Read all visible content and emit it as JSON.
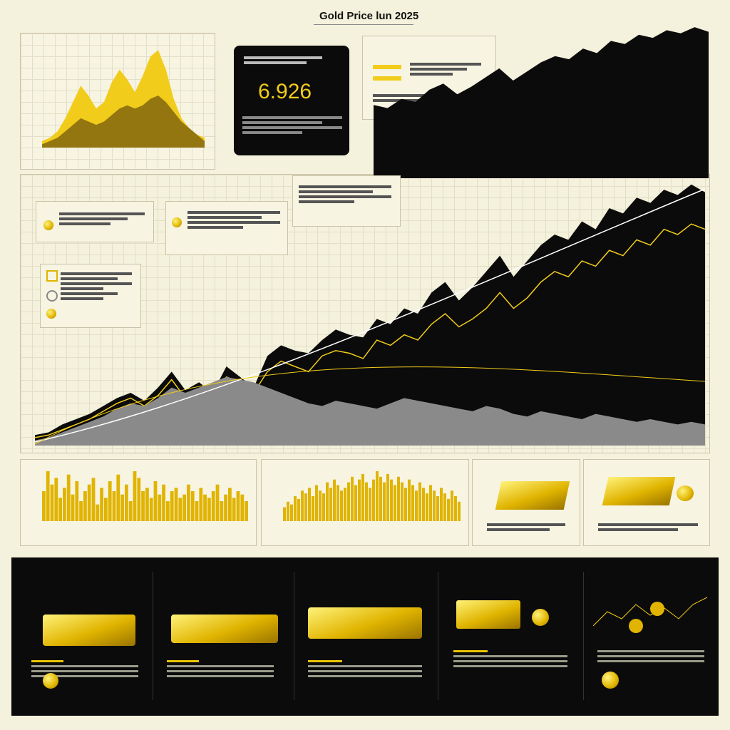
{
  "title": "Gold Price lun 2025",
  "price_card": {
    "value": "6.926"
  },
  "colors": {
    "gold": "#f2cc1a",
    "dark": "#0b0b0b",
    "paper": "#f4f1dc",
    "grey": "#8a8a8a"
  },
  "chart_data": [
    {
      "type": "area",
      "series": [
        {
          "values": [
            2,
            3,
            5,
            9,
            14,
            19,
            16,
            12,
            14,
            20,
            24,
            21,
            17,
            22,
            28,
            30,
            24,
            15,
            9,
            6,
            4,
            3
          ]
        },
        {
          "values": [
            1,
            2,
            3,
            5,
            7,
            9,
            8,
            7,
            8,
            10,
            12,
            13,
            12,
            13,
            15,
            16,
            14,
            11,
            8,
            6,
            4,
            2
          ]
        }
      ]
    },
    {
      "type": "area",
      "series": [
        {
          "values": [
            4,
            5,
            8,
            10,
            12,
            15,
            18,
            20,
            17,
            22,
            28,
            21,
            24,
            20,
            30,
            26,
            22,
            34,
            38,
            36,
            35,
            40,
            44,
            42,
            41,
            48,
            46,
            52,
            50,
            58,
            62,
            55,
            60,
            66,
            72,
            64,
            70,
            76,
            80,
            78,
            85,
            82,
            90,
            88,
            94,
            92,
            97,
            95,
            99,
            96
          ]
        },
        {
          "values": [
            3,
            4,
            6,
            8,
            10,
            13,
            16,
            18,
            15,
            19,
            25,
            18,
            20,
            18,
            26,
            24,
            20,
            28,
            32,
            30,
            28,
            34,
            36,
            35,
            33,
            40,
            38,
            42,
            40,
            46,
            50,
            45,
            48,
            52,
            58,
            52,
            56,
            62,
            66,
            64,
            70,
            68,
            74,
            72,
            78,
            76,
            82,
            80,
            84,
            82
          ]
        },
        {
          "values": [
            2,
            3,
            5,
            7,
            9,
            11,
            14,
            16,
            15,
            18,
            22,
            20,
            22,
            24,
            26,
            25,
            24,
            22,
            20,
            18,
            16,
            15,
            17,
            16,
            15,
            14,
            16,
            18,
            17,
            16,
            15,
            14,
            13,
            15,
            14,
            12,
            11,
            13,
            12,
            11,
            10,
            12,
            11,
            10,
            9,
            10,
            9,
            8,
            9,
            8
          ]
        }
      ]
    },
    {
      "type": "bar",
      "values": [
        18,
        30,
        22,
        26,
        14,
        20,
        28,
        16,
        24,
        12,
        18,
        22,
        26,
        10,
        20,
        14,
        24,
        18,
        28,
        16,
        22,
        12,
        30,
        26,
        18,
        20,
        14,
        24,
        16,
        22,
        12,
        18,
        20,
        14,
        16,
        22,
        18,
        12,
        20,
        16,
        14,
        18,
        22,
        12,
        16,
        20,
        14,
        18,
        16,
        12
      ]
    },
    {
      "type": "bar",
      "values": [
        10,
        14,
        12,
        18,
        16,
        22,
        20,
        24,
        18,
        26,
        22,
        20,
        28,
        24,
        30,
        26,
        22,
        24,
        28,
        32,
        26,
        30,
        34,
        28,
        24,
        30,
        36,
        32,
        28,
        34,
        30,
        26,
        32,
        28,
        24,
        30,
        26,
        22,
        28,
        24,
        20,
        26,
        22,
        18,
        24,
        20,
        16,
        22,
        18,
        14
      ]
    }
  ]
}
